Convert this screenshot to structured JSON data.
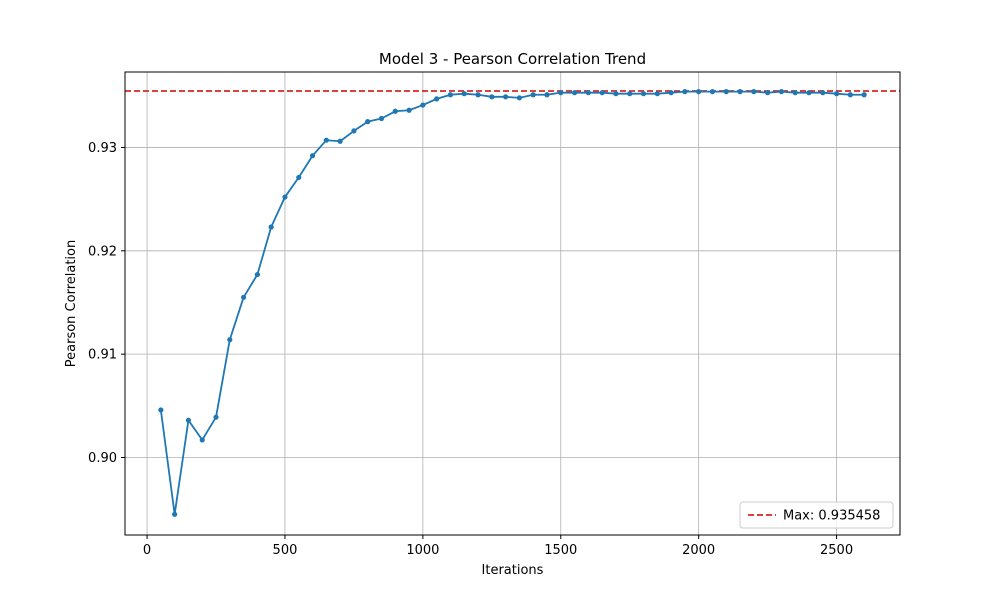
{
  "chart_data": {
    "type": "line",
    "title": "Model 3 - Pearson Correlation Trend",
    "xlabel": "Iterations",
    "ylabel": "Pearson Correlation",
    "xlim": [
      -80,
      2730
    ],
    "ylim": [
      0.8925,
      0.9373
    ],
    "xticks": [
      0,
      500,
      1000,
      1500,
      2000,
      2500
    ],
    "yticks": [
      0.9,
      0.91,
      0.92,
      0.93
    ],
    "ytick_labels": [
      "0.90",
      "0.91",
      "0.92",
      "0.93"
    ],
    "grid": true,
    "legend_position": "lower-right",
    "series": [
      {
        "color": "#1f77b4",
        "marker": "circle",
        "x": [
          50,
          100,
          150,
          200,
          250,
          300,
          350,
          400,
          450,
          500,
          550,
          600,
          650,
          700,
          750,
          800,
          850,
          900,
          950,
          1000,
          1050,
          1100,
          1150,
          1200,
          1250,
          1300,
          1350,
          1400,
          1450,
          1500,
          1550,
          1600,
          1650,
          1700,
          1750,
          1800,
          1850,
          1900,
          1950,
          2000,
          2050,
          2100,
          2150,
          2200,
          2250,
          2300,
          2350,
          2400,
          2450,
          2500,
          2550,
          2600
        ],
        "y": [
          0.9046,
          0.8945,
          0.9036,
          0.9017,
          0.9039,
          0.9114,
          0.9155,
          0.9177,
          0.9223,
          0.9252,
          0.9271,
          0.9292,
          0.9307,
          0.9306,
          0.9316,
          0.9325,
          0.9328,
          0.9335,
          0.9336,
          0.9341,
          0.9347,
          0.9351,
          0.9352,
          0.9351,
          0.9349,
          0.9349,
          0.9348,
          0.9351,
          0.9351,
          0.9353,
          0.9353,
          0.9353,
          0.9353,
          0.9352,
          0.9352,
          0.9352,
          0.9352,
          0.9353,
          0.9354,
          0.9354,
          0.9354,
          0.9354,
          0.9354,
          0.9354,
          0.9353,
          0.9354,
          0.9353,
          0.9353,
          0.9353,
          0.9352,
          0.9351,
          0.9351
        ]
      }
    ],
    "reference_line": {
      "y": 0.935458,
      "color": "#d62728",
      "style": "dashed",
      "label": "Max: 0.935458"
    }
  }
}
